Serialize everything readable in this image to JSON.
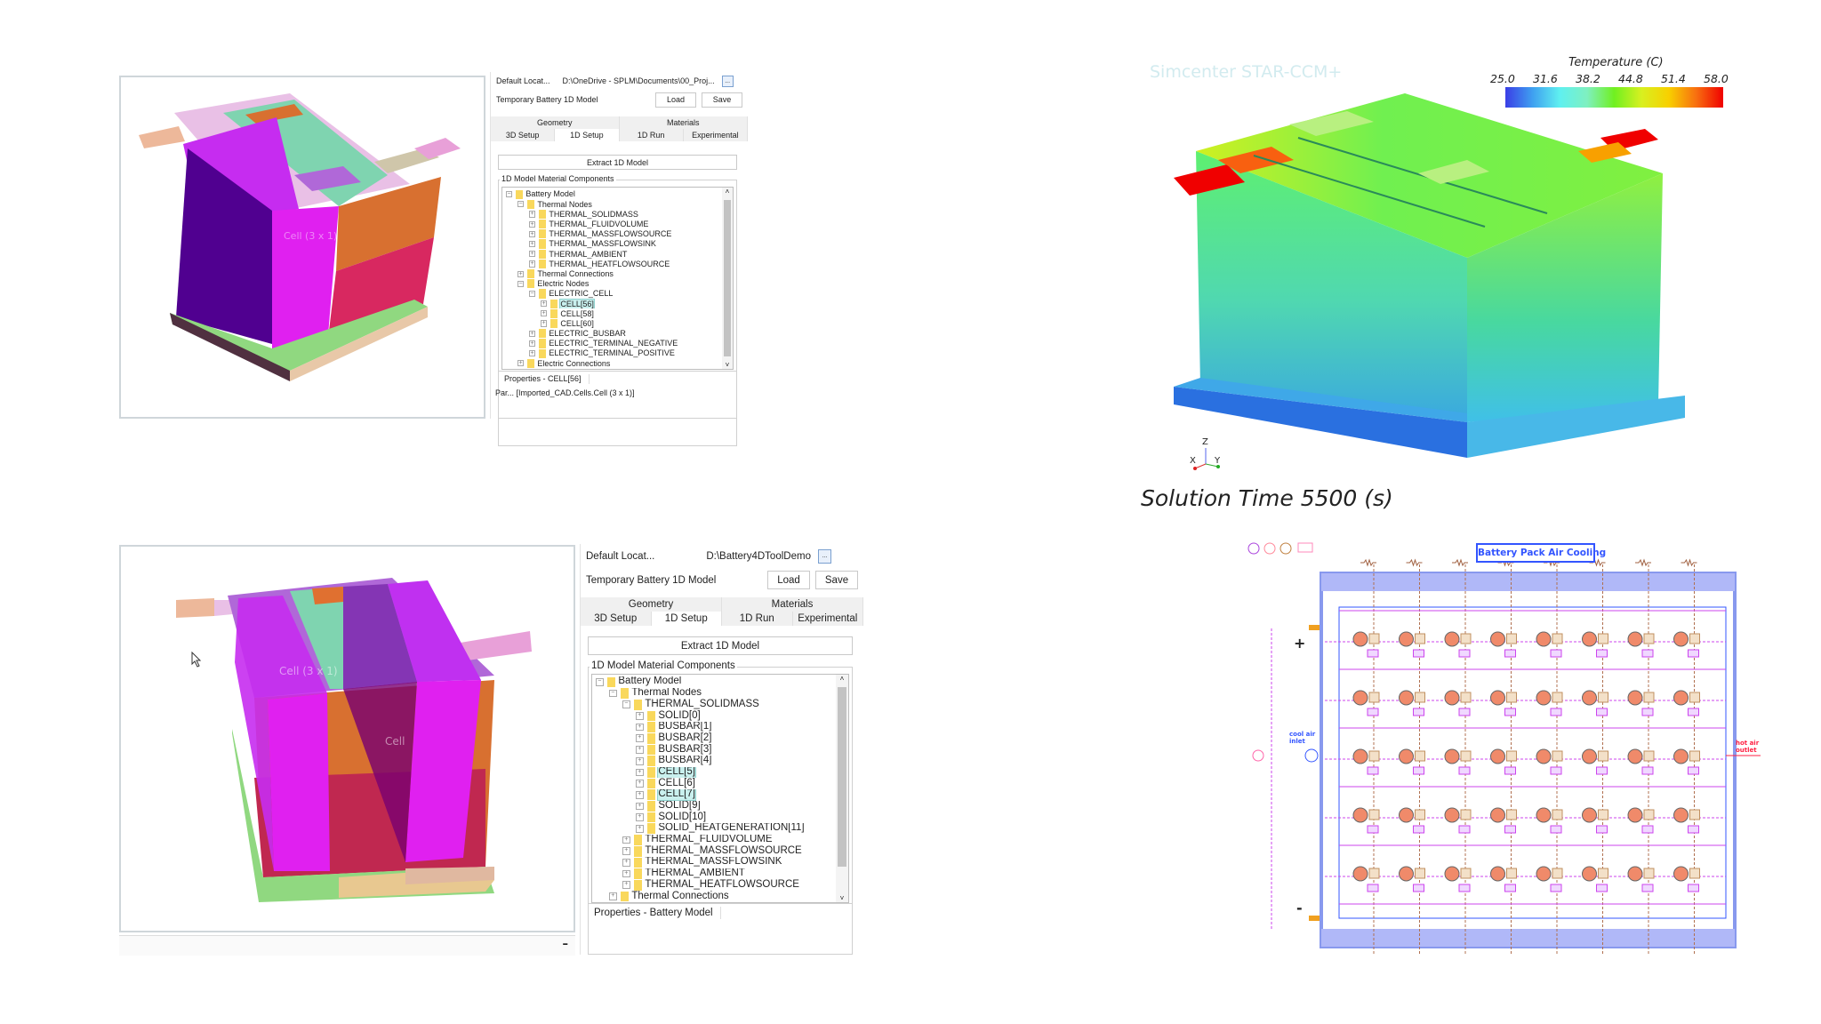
{
  "top_panel": {
    "default_location_label": "Default Locat...",
    "default_location_value": "D:\\OneDrive - SPLM\\Documents\\00_Proj...",
    "browse_label": "...",
    "model_label": "Temporary Battery 1D Model",
    "load_label": "Load",
    "save_label": "Save",
    "tabs_row1": [
      "Geometry",
      "Materials"
    ],
    "tabs_row2": [
      "3D Setup",
      "1D Setup",
      "1D Run",
      "Experimental"
    ],
    "active_tab": "1D Setup",
    "extract_label": "Extract 1D Model",
    "group_title": "1D Model Material Components",
    "tree": [
      {
        "label": "Battery Model",
        "depth": 0,
        "exp": "-"
      },
      {
        "label": "Thermal Nodes",
        "depth": 1,
        "exp": "-"
      },
      {
        "label": "THERMAL_SOLIDMASS",
        "depth": 2,
        "exp": "+"
      },
      {
        "label": "THERMAL_FLUIDVOLUME",
        "depth": 2,
        "exp": "+"
      },
      {
        "label": "THERMAL_MASSFLOWSOURCE",
        "depth": 2,
        "exp": "+"
      },
      {
        "label": "THERMAL_MASSFLOWSINK",
        "depth": 2,
        "exp": "+"
      },
      {
        "label": "THERMAL_AMBIENT",
        "depth": 2,
        "exp": "+"
      },
      {
        "label": "THERMAL_HEATFLOWSOURCE",
        "depth": 2,
        "exp": "+"
      },
      {
        "label": "Thermal Connections",
        "depth": 1,
        "exp": "+"
      },
      {
        "label": "Electric Nodes",
        "depth": 1,
        "exp": "-"
      },
      {
        "label": "ELECTRIC_CELL",
        "depth": 2,
        "exp": "-"
      },
      {
        "label": "CELL[56]",
        "depth": 3,
        "exp": "+",
        "selected": true
      },
      {
        "label": "CELL[58]",
        "depth": 3,
        "exp": "+"
      },
      {
        "label": "CELL[60]",
        "depth": 3,
        "exp": "+"
      },
      {
        "label": "ELECTRIC_BUSBAR",
        "depth": 2,
        "exp": "+"
      },
      {
        "label": "ELECTRIC_TERMINAL_NEGATIVE",
        "depth": 2,
        "exp": "+"
      },
      {
        "label": "ELECTRIC_TERMINAL_POSITIVE",
        "depth": 2,
        "exp": "+"
      },
      {
        "label": "Electric Connections",
        "depth": 1,
        "exp": "+"
      }
    ],
    "properties_title": "Properties - CELL[56]",
    "properties_row": "Par... [Imported_CAD.Cells.Cell (3 x 1)]"
  },
  "bottom_panel": {
    "default_location_label": "Default Locat...",
    "default_location_value": "D:\\Battery4DToolDemo",
    "browse_label": "...",
    "model_label": "Temporary Battery 1D Model",
    "load_label": "Load",
    "save_label": "Save",
    "tabs_row1": [
      "Geometry",
      "Materials"
    ],
    "tabs_row2": [
      "3D Setup",
      "1D Setup",
      "1D Run",
      "Experimental"
    ],
    "active_tab": "1D Setup",
    "extract_label": "Extract 1D Model",
    "group_title": "1D Model Material Components",
    "tree": [
      {
        "label": "Battery Model",
        "depth": 0,
        "exp": "-"
      },
      {
        "label": "Thermal Nodes",
        "depth": 1,
        "exp": "-"
      },
      {
        "label": "THERMAL_SOLIDMASS",
        "depth": 2,
        "exp": "-"
      },
      {
        "label": "SOLID[0]",
        "depth": 3,
        "exp": "+"
      },
      {
        "label": "BUSBAR[1]",
        "depth": 3,
        "exp": "+"
      },
      {
        "label": "BUSBAR[2]",
        "depth": 3,
        "exp": "+"
      },
      {
        "label": "BUSBAR[3]",
        "depth": 3,
        "exp": "+"
      },
      {
        "label": "BUSBAR[4]",
        "depth": 3,
        "exp": "+"
      },
      {
        "label": "CELL[5]",
        "depth": 3,
        "exp": "+",
        "selected": true
      },
      {
        "label": "CELL[6]",
        "depth": 3,
        "exp": "+"
      },
      {
        "label": "CELL[7]",
        "depth": 3,
        "exp": "+",
        "selected": true
      },
      {
        "label": "SOLID[9]",
        "depth": 3,
        "exp": "+"
      },
      {
        "label": "SOLID[10]",
        "depth": 3,
        "exp": "+"
      },
      {
        "label": "SOLID_HEATGENERATION[11]",
        "depth": 3,
        "exp": "+"
      },
      {
        "label": "THERMAL_FLUIDVOLUME",
        "depth": 2,
        "exp": "+"
      },
      {
        "label": "THERMAL_MASSFLOWSOURCE",
        "depth": 2,
        "exp": "+"
      },
      {
        "label": "THERMAL_MASSFLOWSINK",
        "depth": 2,
        "exp": "+"
      },
      {
        "label": "THERMAL_AMBIENT",
        "depth": 2,
        "exp": "+"
      },
      {
        "label": "THERMAL_HEATFLOWSOURCE",
        "depth": 2,
        "exp": "+"
      },
      {
        "label": "Thermal Connections",
        "depth": 1,
        "exp": "+"
      }
    ],
    "properties_title": "Properties - Battery Model"
  },
  "viewport_top": {
    "annotation": "Cell (3 x 1)"
  },
  "viewport_bottom": {
    "annotation_1": "Cell (3 x 1)",
    "annotation_2": "Cell",
    "minimize_label": "–"
  },
  "simulation": {
    "watermark": "Simcenter STAR-CCM+",
    "legend_title": "Temperature (C)",
    "legend_ticks": [
      "25.0",
      "31.6",
      "38.2",
      "44.8",
      "51.4",
      "58.0"
    ],
    "legend_range": [
      25.0,
      58.0
    ],
    "legend_colors": [
      "#3a3ee6",
      "#3fa0f0",
      "#5ff0f0",
      "#7ff0c0",
      "#70f020",
      "#d8f020",
      "#f8d000",
      "#f87010",
      "#f00000"
    ],
    "axis_labels": {
      "z": "Z",
      "x": "X",
      "y": "Y"
    },
    "solution_time": "Solution Time 5500 (s)"
  },
  "diagram": {
    "title": "Battery Pack Air Cooling",
    "cool_air_label": "cool air inlet",
    "hot_air_label": "hot air outlet",
    "plus_label": "+",
    "minus_label": "-",
    "accent_color": "#3355ff",
    "cell_color": "#f08a6a",
    "air_color": "#cc44ee"
  }
}
